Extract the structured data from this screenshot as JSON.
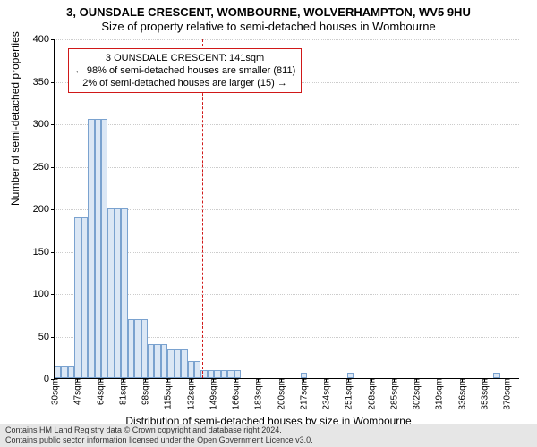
{
  "header": {
    "main_title": "3, OUNSDALE CRESCENT, WOMBOURNE, WOLVERHAMPTON, WV5 9HU",
    "sub_title": "Size of property relative to semi-detached houses in Wombourne"
  },
  "chart": {
    "type": "histogram",
    "background_color": "#ffffff",
    "grid_color": "#cccccc",
    "axis_color": "#000000",
    "bar_fill": "#dbe7f5",
    "bar_border": "#7aa2cf",
    "marker_color": "#d01818",
    "ylim": [
      0,
      400
    ],
    "ytick_step": 50,
    "ylabel": "Number of semi-detached properties",
    "xlabel": "Distribution of semi-detached houses by size in Wombourne",
    "x_start": 30,
    "x_end": 380,
    "x_bin_width_sqm": 5,
    "x_tick_step_sqm": 17,
    "x_tick_suffix": "sqm",
    "marker_value_sqm": 141,
    "bins": [
      {
        "start": 30,
        "count": 15
      },
      {
        "start": 35,
        "count": 15
      },
      {
        "start": 40,
        "count": 15
      },
      {
        "start": 45,
        "count": 190
      },
      {
        "start": 50,
        "count": 190
      },
      {
        "start": 55,
        "count": 305
      },
      {
        "start": 60,
        "count": 305
      },
      {
        "start": 65,
        "count": 305
      },
      {
        "start": 70,
        "count": 200
      },
      {
        "start": 75,
        "count": 200
      },
      {
        "start": 80,
        "count": 200
      },
      {
        "start": 85,
        "count": 70
      },
      {
        "start": 90,
        "count": 70
      },
      {
        "start": 95,
        "count": 70
      },
      {
        "start": 100,
        "count": 40
      },
      {
        "start": 105,
        "count": 40
      },
      {
        "start": 110,
        "count": 40
      },
      {
        "start": 115,
        "count": 35
      },
      {
        "start": 120,
        "count": 35
      },
      {
        "start": 125,
        "count": 35
      },
      {
        "start": 130,
        "count": 20
      },
      {
        "start": 135,
        "count": 20
      },
      {
        "start": 140,
        "count": 10
      },
      {
        "start": 145,
        "count": 10
      },
      {
        "start": 150,
        "count": 10
      },
      {
        "start": 155,
        "count": 10
      },
      {
        "start": 160,
        "count": 10
      },
      {
        "start": 165,
        "count": 10
      },
      {
        "start": 215,
        "count": 6
      },
      {
        "start": 250,
        "count": 6
      },
      {
        "start": 360,
        "count": 6
      }
    ],
    "annotation": {
      "line1": "3 OUNSDALE CRESCENT: 141sqm",
      "line2": "← 98% of semi-detached houses are smaller (811)",
      "line3": "2% of semi-detached houses are larger (15) →",
      "left_sqm": 40,
      "top_value": 390,
      "fontsize": 11
    }
  },
  "footer": {
    "line1": "Contains HM Land Registry data © Crown copyright and database right 2024.",
    "line2": "Contains public sector information licensed under the Open Government Licence v3.0."
  }
}
